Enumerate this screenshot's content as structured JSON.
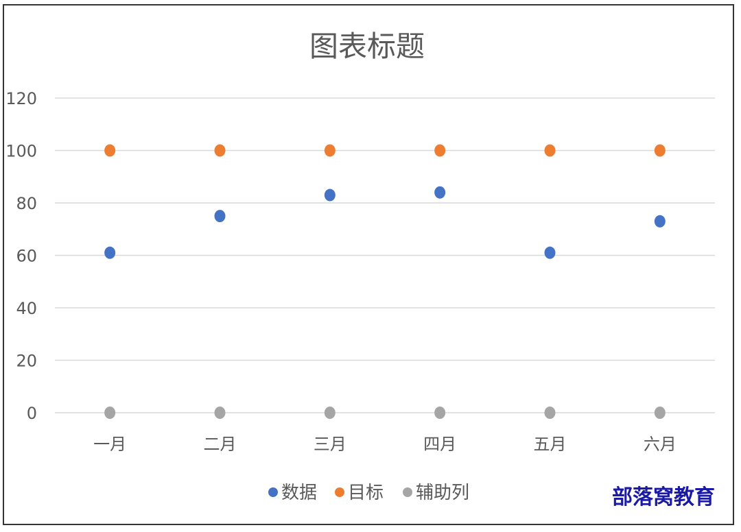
{
  "chart_data": {
    "type": "scatter",
    "title": "图表标题",
    "xlabel": "",
    "ylabel": "",
    "categories": [
      "一月",
      "二月",
      "三月",
      "四月",
      "五月",
      "六月"
    ],
    "ylim": [
      0,
      120
    ],
    "yticks": [
      "0",
      "20",
      "40",
      "60",
      "80",
      "100",
      "120"
    ],
    "grid": true,
    "legend_position": "bottom",
    "series": [
      {
        "name": "数据",
        "color": "#4472c4",
        "values": [
          61,
          75,
          83,
          84,
          61,
          73
        ]
      },
      {
        "name": "目标",
        "color": "#ed7d31",
        "values": [
          100,
          100,
          100,
          100,
          100,
          100
        ]
      },
      {
        "name": "辅助列",
        "color": "#a5a5a5",
        "values": [
          0,
          0,
          0,
          0,
          0,
          0
        ]
      }
    ]
  },
  "watermark": "部落窝教育"
}
